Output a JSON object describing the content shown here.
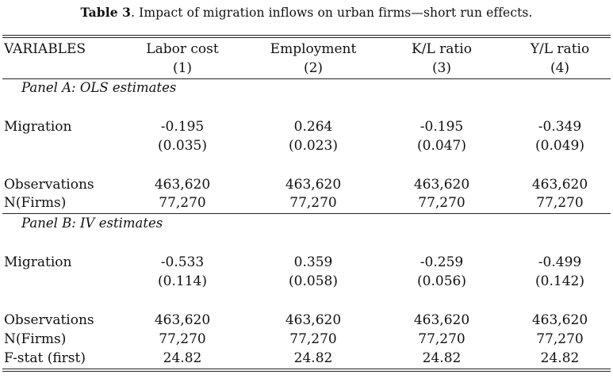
{
  "caption": {
    "label": "Table 3",
    "text": ". Impact of migration inflows on urban firms—short run effects."
  },
  "header": {
    "variables_label": "VARIABLES",
    "columns": [
      {
        "name": "Labor cost",
        "num": "(1)"
      },
      {
        "name": "Employment",
        "num": "(2)"
      },
      {
        "name": "K/L ratio",
        "num": "(3)"
      },
      {
        "name": "Y/L ratio",
        "num": "(4)"
      }
    ]
  },
  "panel_a": {
    "title": "Panel A: OLS estimates",
    "migration_label": "Migration",
    "coef": [
      "-0.195",
      "0.264",
      "-0.195",
      "-0.349"
    ],
    "se": [
      "(0.035)",
      "(0.023)",
      "(0.047)",
      "(0.049)"
    ],
    "obs_label": "Observations",
    "obs": [
      "463,620",
      "463,620",
      "463,620",
      "463,620"
    ],
    "firms_label": "N(Firms)",
    "firms": [
      "77,270",
      "77,270",
      "77,270",
      "77,270"
    ]
  },
  "panel_b": {
    "title": "Panel B: IV estimates",
    "migration_label": "Migration",
    "coef": [
      "-0.533",
      "0.359",
      "-0.259",
      "-0.499"
    ],
    "se": [
      "(0.114)",
      "(0.058)",
      "(0.056)",
      "(0.142)"
    ],
    "obs_label": "Observations",
    "obs": [
      "463,620",
      "463,620",
      "463,620",
      "463,620"
    ],
    "firms_label": "N(Firms)",
    "firms": [
      "77,270",
      "77,270",
      "77,270",
      "77,270"
    ],
    "fstat_label": "F-stat (first)",
    "fstat": [
      "24.82",
      "24.82",
      "24.82",
      "24.82"
    ]
  }
}
